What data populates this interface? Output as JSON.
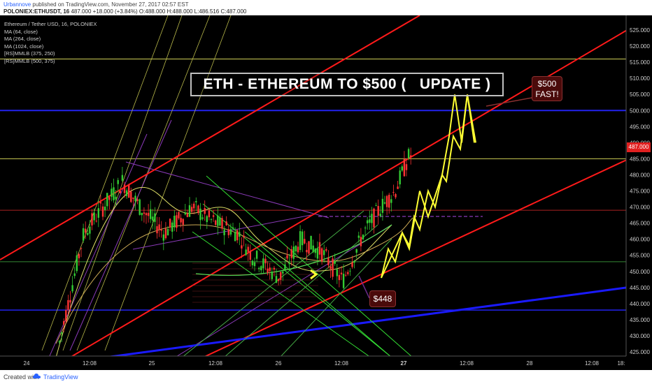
{
  "header": {
    "author": "Urbannove",
    "published": "published on TradingView.com, November 27, 2017 02:57 EST",
    "symbol": "POLONIEX:ETHUSDT, 16",
    "last": "487.000",
    "change": "+18.000 (+3.84%)",
    "ohlc": "O:488.000 H:488.000 L:486.516 C:487.000"
  },
  "legend": {
    "instrument": "Ethereum / Tether USD, 16, POLONIEX",
    "studies": [
      "MA (64, close)",
      "MA (264, close)",
      "MA (1024, close)",
      "[RS]MMLB (375, 250)",
      "[RS]MMLB (500, 375)"
    ]
  },
  "annotations": {
    "title": "ETH - ETHEREUM TO $500 (   UPDATE )",
    "target_line1": "$500",
    "target_line2": "FAST!",
    "support": "$448",
    "price_tag": "487.000"
  },
  "footer": {
    "created_with": "Created with",
    "brand": "TradingView"
  },
  "colors": {
    "background": "#000000",
    "channel": "#ff1a1a",
    "trendline": "#1a1aff",
    "projection": "#ffff33",
    "pitchfork": "#33dd33",
    "up_candle": "#33cc33",
    "down_candle": "#ff3333"
  },
  "chart_data": {
    "type": "candlestick",
    "y_axis_ticks": [
      425,
      430,
      435,
      440,
      445,
      450,
      455,
      460,
      465,
      470,
      475,
      480,
      485,
      490,
      495,
      500,
      505,
      510,
      515,
      520,
      525
    ],
    "x_axis_ticks": [
      "24",
      "12:08",
      "25",
      "12:08",
      "26",
      "12:08",
      "27",
      "12:08",
      "28",
      "12:08",
      "18:"
    ],
    "ylim": [
      423,
      527
    ],
    "last_price": 487,
    "horizontal_levels": [
      500,
      485,
      469,
      453,
      516,
      438
    ],
    "projection_path": [
      448,
      457,
      453,
      462,
      458,
      467,
      463,
      475,
      470,
      480,
      478,
      492,
      488,
      505,
      492,
      505,
      490
    ],
    "support_price": 448,
    "target_price": 500
  }
}
